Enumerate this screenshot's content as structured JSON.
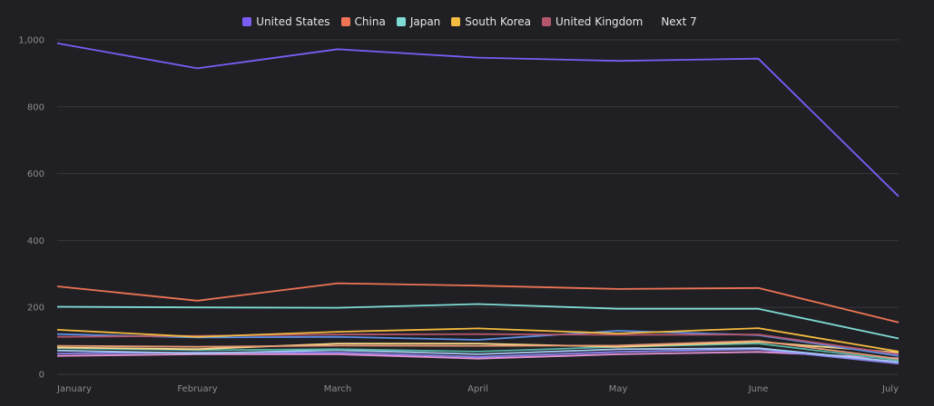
{
  "chart_data": {
    "type": "line",
    "categories": [
      "January",
      "February",
      "March",
      "April",
      "May",
      "June",
      "July"
    ],
    "ylim": [
      0,
      1000
    ],
    "yticks": [
      0,
      200,
      400,
      600,
      800,
      1000
    ],
    "ytick_labels": [
      "0",
      "200",
      "400",
      "600",
      "800",
      "1,000"
    ],
    "grid": true,
    "legend_position": "top-center",
    "legend_more_label": "Next 7",
    "series": [
      {
        "name": "United States",
        "color": "#7b5cf5",
        "values": [
          990,
          915,
          972,
          947,
          937,
          944,
          532
        ],
        "legend": true
      },
      {
        "name": "China",
        "color": "#ee7454",
        "values": [
          263,
          220,
          272,
          265,
          255,
          258,
          155
        ],
        "legend": true
      },
      {
        "name": "Japan",
        "color": "#7fdcd5",
        "values": [
          202,
          200,
          199,
          210,
          196,
          196,
          107
        ],
        "legend": true
      },
      {
        "name": "South Korea",
        "color": "#f5bb40",
        "values": [
          133,
          112,
          127,
          137,
          122,
          138,
          68
        ],
        "legend": true
      },
      {
        "name": "United Kingdom",
        "color": "#b5566c",
        "values": [
          112,
          115,
          119,
          120,
          118,
          119,
          60
        ],
        "legend": true
      },
      {
        "color": "#5b8fe6",
        "values": [
          120,
          110,
          112,
          103,
          130,
          117,
          55
        ],
        "legend": false
      },
      {
        "color": "#e89a76",
        "values": [
          85,
          82,
          86,
          85,
          86,
          100,
          46
        ],
        "legend": false
      },
      {
        "color": "#f7d98a",
        "values": [
          80,
          75,
          92,
          92,
          82,
          97,
          65
        ],
        "legend": false
      },
      {
        "color": "#54b5a6",
        "values": [
          78,
          72,
          75,
          68,
          82,
          92,
          42
        ],
        "legend": false
      },
      {
        "color": "#a6c9f2",
        "values": [
          71,
          63,
          72,
          60,
          75,
          78,
          37
        ],
        "legend": false
      },
      {
        "color": "#8d84f2",
        "values": [
          62,
          65,
          65,
          52,
          67,
          75,
          32
        ],
        "legend": false
      },
      {
        "color": "#e896d8",
        "values": [
          55,
          60,
          60,
          47,
          60,
          67,
          48
        ],
        "legend": false
      }
    ]
  }
}
